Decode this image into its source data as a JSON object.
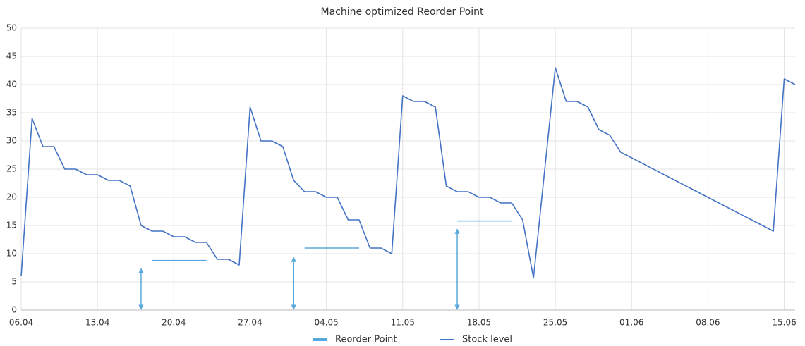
{
  "chart_data": {
    "type": "line",
    "title": "Machine optimized Reorder Point",
    "xlim": [
      "06.04",
      "16.06"
    ],
    "xticks": [
      "06.04",
      "13.04",
      "20.04",
      "27.04",
      "04.05",
      "11.05",
      "18.05",
      "25.05",
      "01.06",
      "08.06",
      "15.06"
    ],
    "ylim": [
      0,
      50
    ],
    "yticks": [
      0,
      5,
      10,
      15,
      20,
      25,
      30,
      35,
      40,
      45,
      50
    ],
    "grid": true,
    "legend": "bottom",
    "series": [
      {
        "name": "Reorder Point",
        "color": "#5aa9dc",
        "segments": [
          {
            "x": [
              "18.04",
              "23.04"
            ],
            "values": [
              8.8,
              8.8
            ]
          },
          {
            "x": [
              "02.05",
              "07.05"
            ],
            "values": [
              11,
              11
            ]
          },
          {
            "x": [
              "16.05",
              "21.05"
            ],
            "values": [
              15.8,
              15.8
            ]
          }
        ],
        "arrows": [
          {
            "x": "17.04",
            "from": 0,
            "to": 7.5
          },
          {
            "x": "01.05",
            "from": 0,
            "to": 9.5
          },
          {
            "x": "16.05",
            "from": 0,
            "to": 14.5
          }
        ]
      },
      {
        "name": "Stock level",
        "color": "#4472c4",
        "x": [
          "06.04",
          "07.04",
          "08.04",
          "09.04",
          "10.04",
          "11.04",
          "12.04",
          "13.04",
          "14.04",
          "15.04",
          "16.04",
          "17.04",
          "18.04",
          "19.04",
          "20.04",
          "21.04",
          "22.04",
          "23.04",
          "24.04",
          "25.04",
          "26.04",
          "27.04",
          "28.04",
          "29.04",
          "30.04",
          "01.05",
          "02.05",
          "03.05",
          "04.05",
          "05.05",
          "06.05",
          "07.05",
          "08.05",
          "09.05",
          "10.05",
          "11.05",
          "12.05",
          "13.05",
          "14.05",
          "15.05",
          "16.05",
          "17.05",
          "18.05",
          "19.05",
          "20.05",
          "21.05",
          "22.05",
          "23.05",
          "25.05",
          "26.05",
          "27.05",
          "28.05",
          "29.05",
          "30.05",
          "31.05",
          "14.06",
          "15.06",
          "16.06"
        ],
        "values": [
          6,
          34,
          29,
          29,
          25,
          25,
          24,
          24,
          23,
          23,
          22,
          15,
          14,
          14,
          13,
          13,
          12,
          12,
          9,
          9,
          8,
          36,
          30,
          30,
          29,
          23,
          21,
          21,
          20,
          20,
          16,
          16,
          11,
          11,
          10,
          38,
          37,
          37,
          36,
          22,
          21,
          21,
          20,
          20,
          19,
          19,
          16,
          5.7,
          43,
          37,
          37,
          36,
          32,
          31,
          28,
          14,
          41,
          40
        ]
      }
    ]
  }
}
